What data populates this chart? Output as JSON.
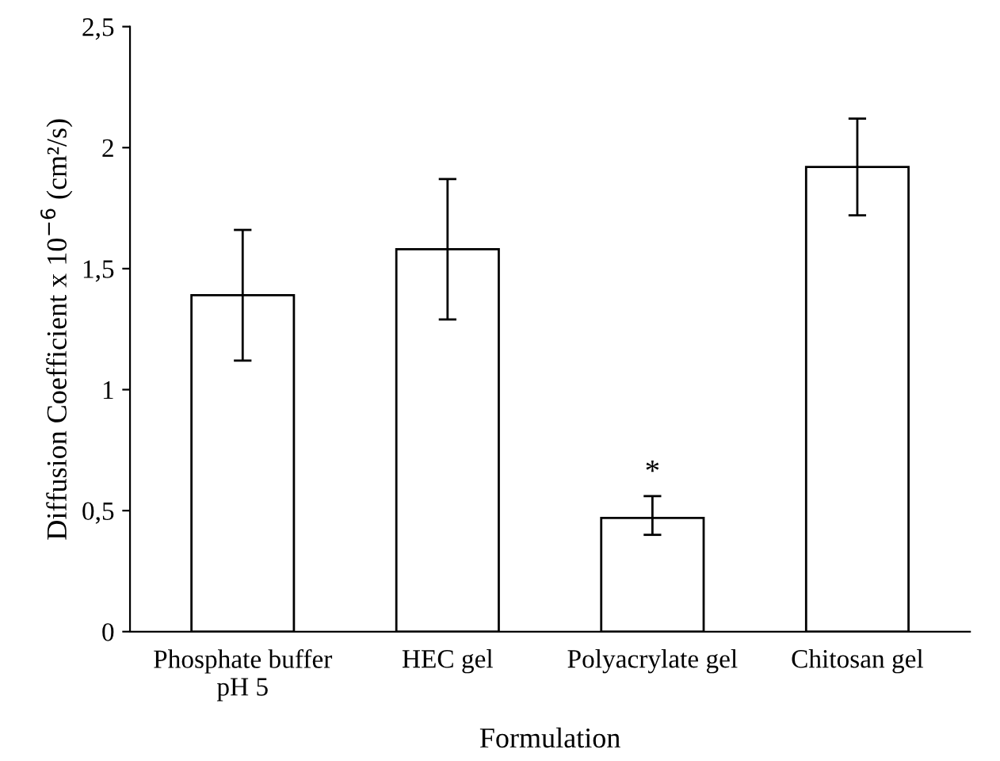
{
  "chart_data": {
    "type": "bar",
    "xlabel": "Formulation",
    "ylabel": "Diffusion Coefficient x 10$^{−6}$ (cm²/s)",
    "categories": [
      "Phosphate buffer\npH 5",
      "HEC gel",
      "Polyacrylate gel",
      "Chitosan gel"
    ],
    "values": [
      1.39,
      1.58,
      0.47,
      1.92
    ],
    "errors": [
      [
        1.12,
        1.66
      ],
      [
        1.29,
        1.87
      ],
      [
        0.4,
        0.56
      ],
      [
        1.72,
        2.12
      ]
    ],
    "color": "#ffffff",
    "ylim": [
      0,
      2.5
    ],
    "yticks": [
      0,
      {
        "value": 0.5,
        "label": "0,5"
      },
      1,
      {
        "value": 1.5,
        "label": "1,5"
      },
      2,
      {
        "value": 2.5,
        "label": "2,5"
      }
    ],
    "annotations": [
      {
        "text": "*",
        "x": "Polyacrylate gel",
        "y": 0.56
      }
    ],
    "grid": false
  }
}
